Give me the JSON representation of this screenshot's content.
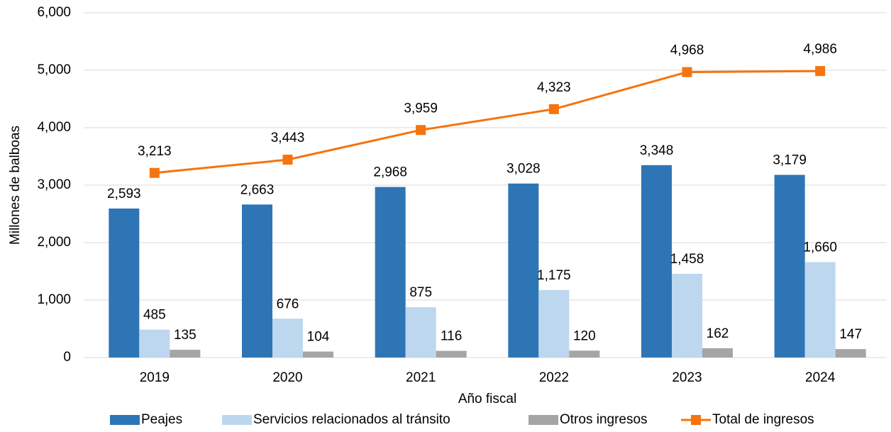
{
  "chart_data": {
    "type": "bar",
    "y_label": "Millones de balboas",
    "x_label": "Año fiscal",
    "categories": [
      "2019",
      "2020",
      "2021",
      "2022",
      "2023",
      "2024"
    ],
    "series": [
      {
        "name": "Peajes",
        "type": "bar",
        "color": "#2e75b6",
        "values": [
          2593,
          2663,
          2968,
          3028,
          3348,
          3179
        ],
        "value_labels": [
          "2,593",
          "2,663",
          "2,968",
          "3,028",
          "3,348",
          "3,179"
        ]
      },
      {
        "name": "Servicios relacionados al tránsito",
        "type": "bar",
        "color": "#bdd7ee",
        "values": [
          485,
          676,
          875,
          1175,
          1458,
          1660
        ],
        "value_labels": [
          "485",
          "676",
          "875",
          "1,175",
          "1,458",
          "1,660"
        ]
      },
      {
        "name": "Otros ingresos",
        "type": "bar",
        "color": "#a5a5a5",
        "values": [
          135,
          104,
          116,
          120,
          162,
          147
        ],
        "value_labels": [
          "135",
          "104",
          "116",
          "120",
          "162",
          "147"
        ]
      },
      {
        "name": "Total de ingresos",
        "type": "line",
        "color": "#f5740f",
        "values": [
          3213,
          3443,
          3959,
          4323,
          4968,
          4986
        ],
        "value_labels": [
          "3,213",
          "3,443",
          "3,959",
          "4,323",
          "4,968",
          "4,986"
        ]
      }
    ],
    "ylim": [
      0,
      6000
    ],
    "yticks": [
      0,
      {
        "value": 1000,
        "label": "1,000"
      },
      {
        "value": 2000,
        "label": "2,000"
      },
      {
        "value": 3000,
        "label": "3,000"
      },
      {
        "value": 4000,
        "label": "4,000"
      },
      {
        "value": 5000,
        "label": "5,000"
      },
      {
        "value": 6000,
        "label": "6,000"
      }
    ],
    "grid": true,
    "legend": "bottom"
  }
}
